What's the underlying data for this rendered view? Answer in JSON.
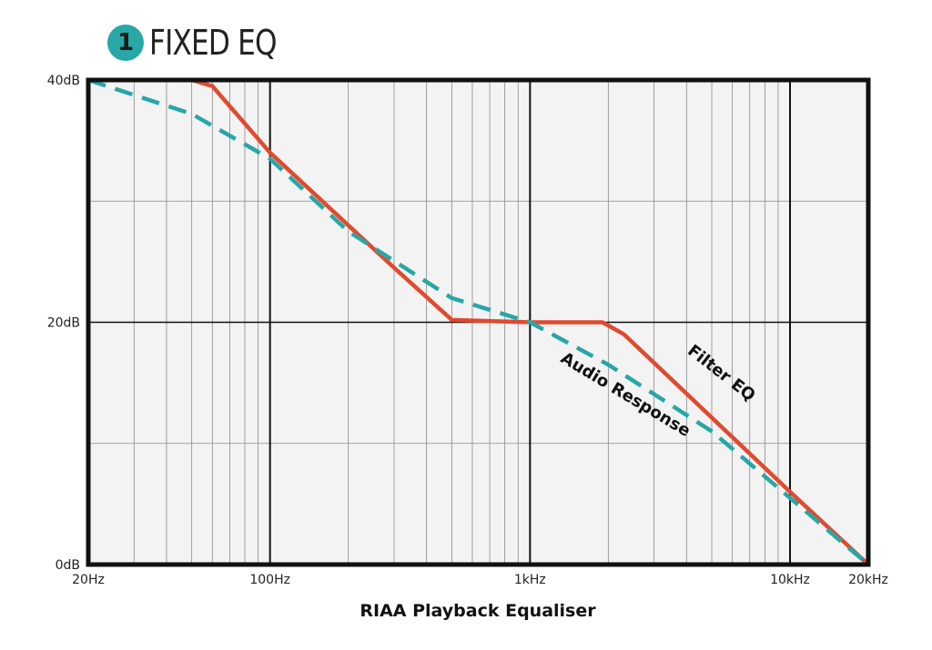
{
  "header": {
    "badge": "1",
    "title": "FIXED EQ"
  },
  "chart_data": {
    "type": "line",
    "title": "FIXED EQ",
    "xlabel": "RIAA Playback Equaliser",
    "ylabel": "",
    "x_scale": "log",
    "xlim": [
      20,
      20000
    ],
    "ylim": [
      0,
      40
    ],
    "x_ticks": [
      {
        "value": 20,
        "label": "20Hz"
      },
      {
        "value": 100,
        "label": "100Hz"
      },
      {
        "value": 1000,
        "label": "1kHz"
      },
      {
        "value": 10000,
        "label": "10kHz"
      },
      {
        "value": 20000,
        "label": "20kHz"
      }
    ],
    "y_ticks": [
      {
        "value": 0,
        "label": "0dB"
      },
      {
        "value": 20,
        "label": "20dB"
      },
      {
        "value": 40,
        "label": "40dB"
      }
    ],
    "grid": true,
    "series": [
      {
        "name": "Filter EQ",
        "color": "#e04a2f",
        "style": "solid",
        "x": [
          20,
          50,
          60,
          100,
          300,
          500,
          1000,
          1900,
          2300,
          10000,
          20000
        ],
        "y": [
          40,
          40,
          39.5,
          34,
          24.5,
          20.2,
          20,
          20,
          19,
          6,
          0
        ]
      },
      {
        "name": "Audio Response",
        "color": "#27a7a6",
        "style": "dashed",
        "x": [
          20,
          50,
          100,
          200,
          500,
          1000,
          2000,
          5000,
          10000,
          20000
        ],
        "y": [
          40,
          37.2,
          33.5,
          27.5,
          22,
          20,
          16.5,
          11,
          5.5,
          0
        ]
      }
    ]
  }
}
